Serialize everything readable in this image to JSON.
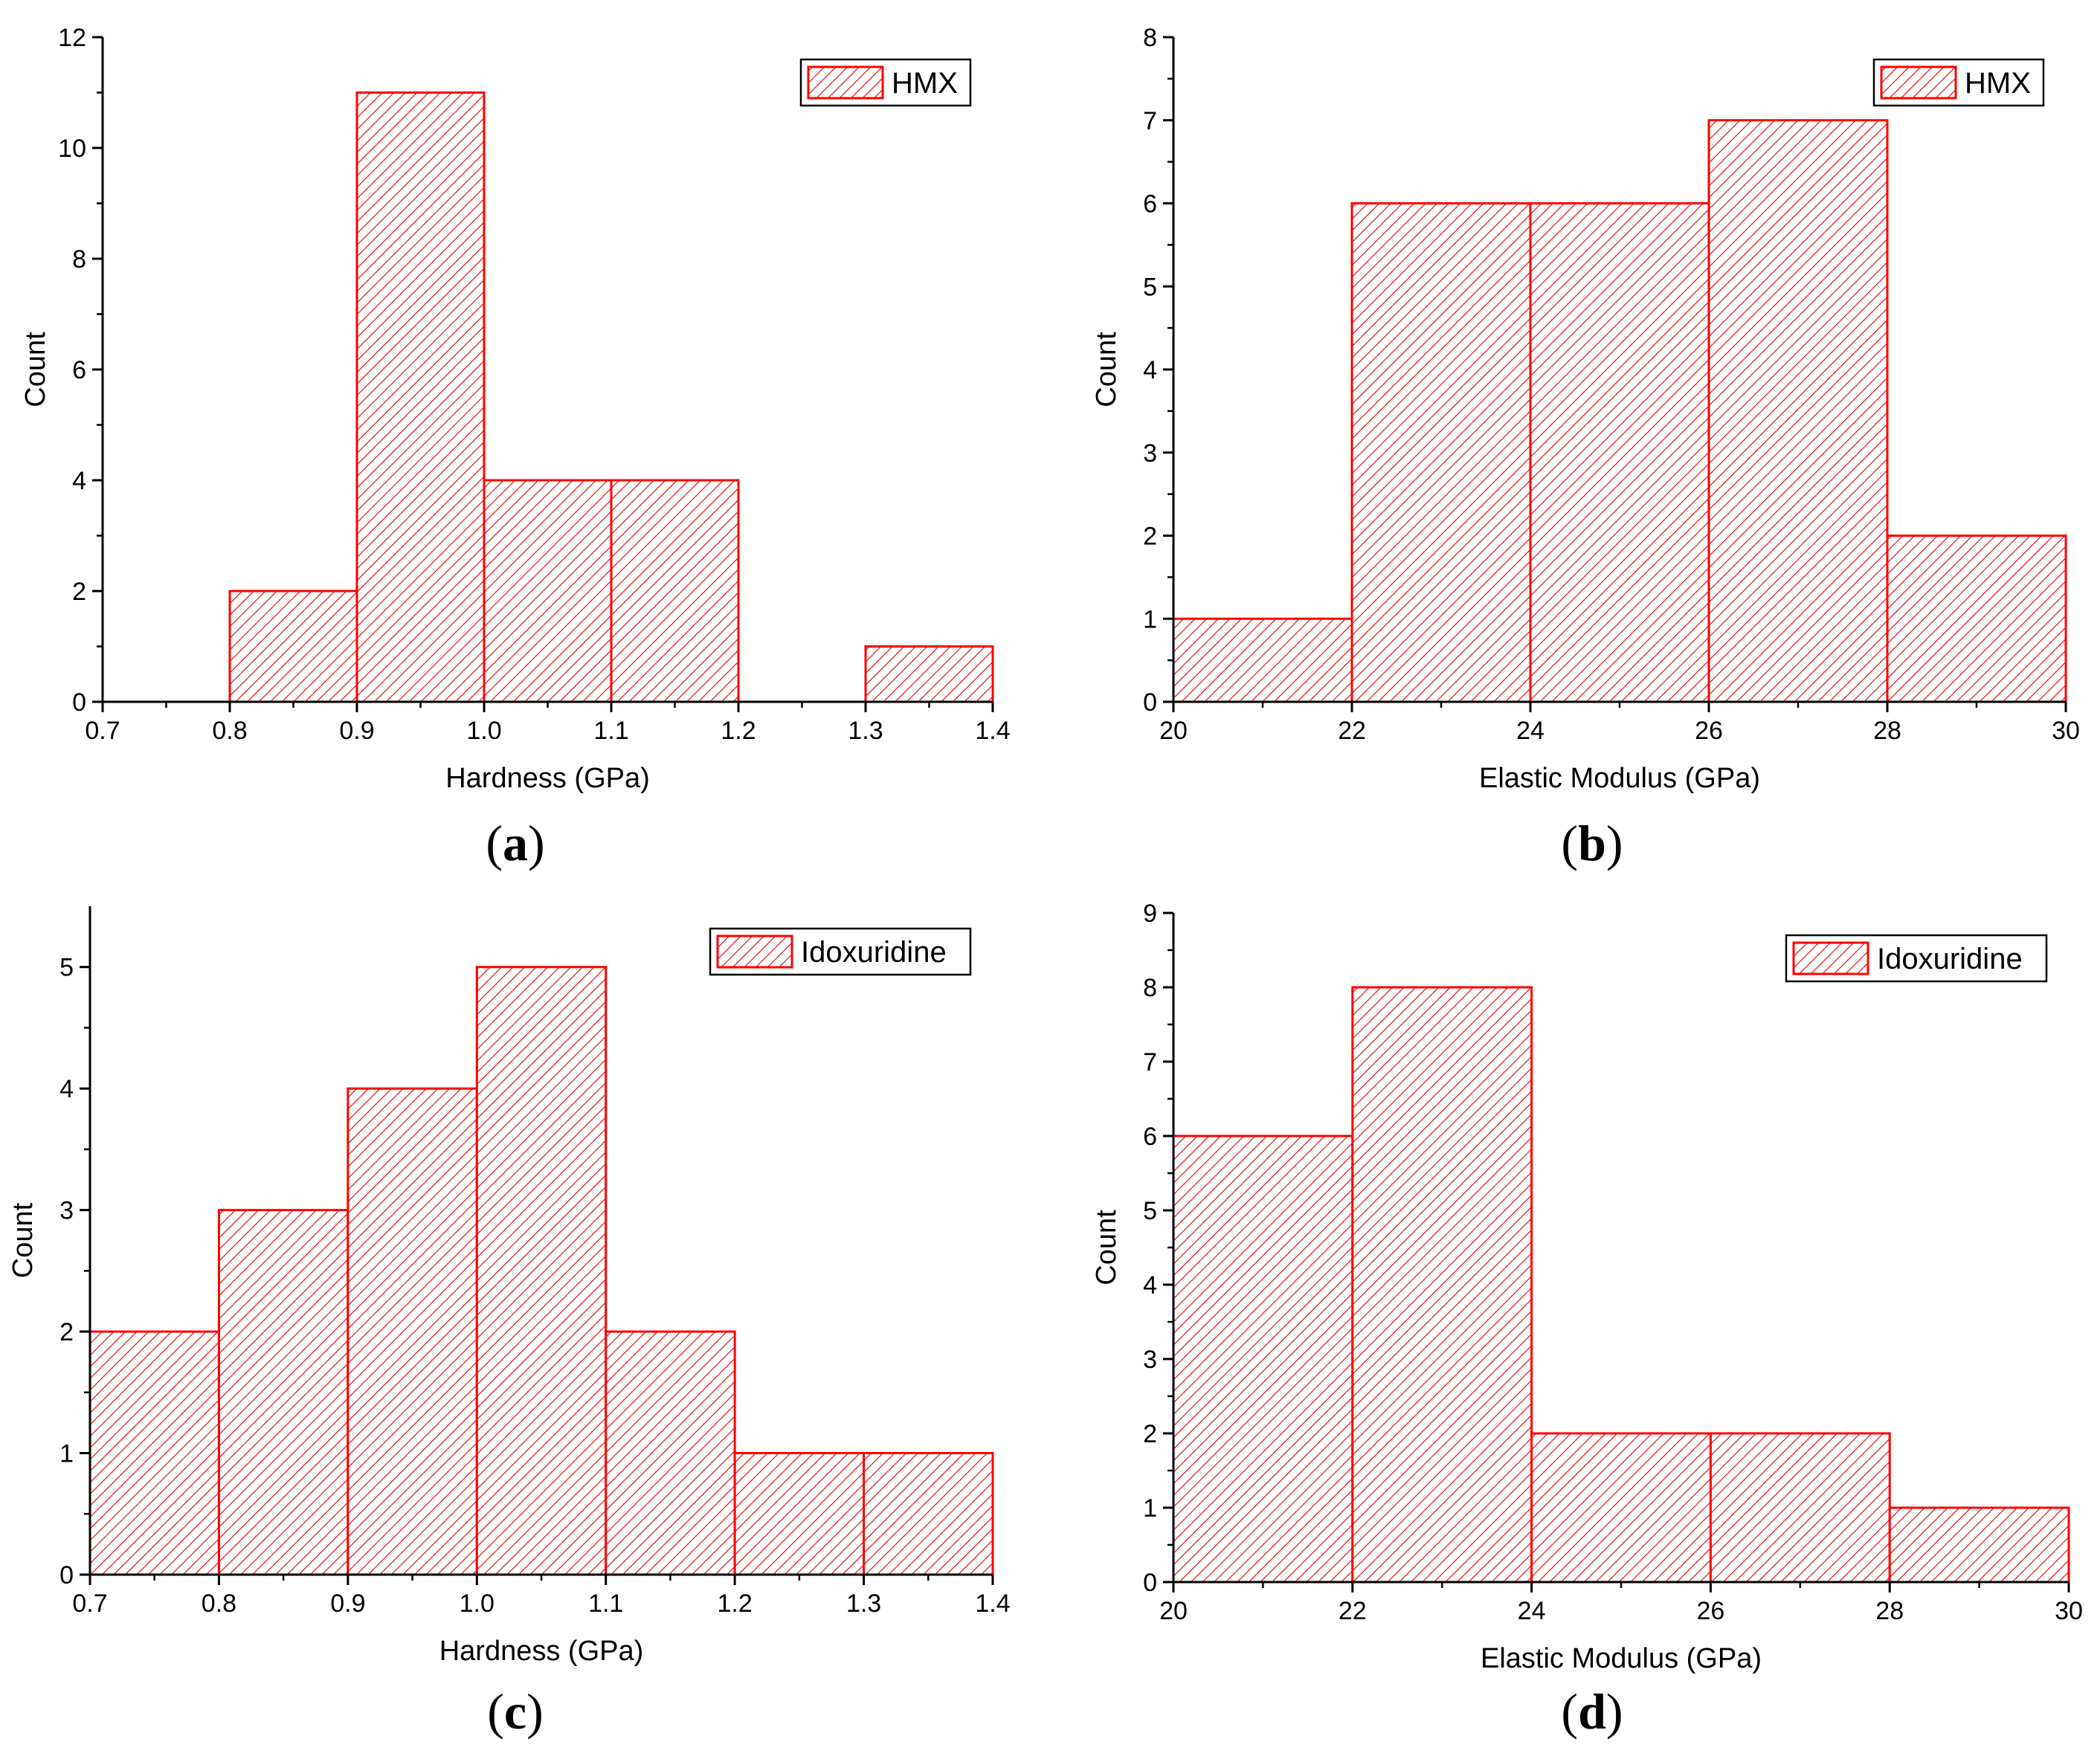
{
  "figure": {
    "bar_color": "#ff0000",
    "hatch_color": "#dd0000",
    "captions": {
      "a": "a",
      "b": "b",
      "c": "c",
      "d": "d"
    }
  },
  "chart_data": [
    {
      "id": "a",
      "type": "bar",
      "title": "",
      "xlabel": "Hardness (GPa)",
      "ylabel": "Count",
      "xlim": [
        0.7,
        1.4
      ],
      "ylim": [
        0,
        12
      ],
      "xticks": [
        "0.7",
        "0.8",
        "0.9",
        "1.0",
        "1.1",
        "1.2",
        "1.3",
        "1.4"
      ],
      "yticks": [
        "0",
        "2",
        "4",
        "6",
        "8",
        "10",
        "12"
      ],
      "legend": {
        "label": "HMX",
        "position": "top-right"
      },
      "bins": [
        {
          "x0": 0.8,
          "x1": 0.9,
          "count": 2
        },
        {
          "x0": 0.9,
          "x1": 1.0,
          "count": 11
        },
        {
          "x0": 1.0,
          "x1": 1.1,
          "count": 4
        },
        {
          "x0": 1.1,
          "x1": 1.2,
          "count": 4
        },
        {
          "x0": 1.3,
          "x1": 1.4,
          "count": 1
        }
      ]
    },
    {
      "id": "b",
      "type": "bar",
      "title": "",
      "xlabel": "Elastic Modulus (GPa)",
      "ylabel": "Count",
      "xlim": [
        20,
        30
      ],
      "ylim": [
        0,
        8
      ],
      "xticks": [
        "20",
        "22",
        "24",
        "26",
        "28",
        "30"
      ],
      "yticks": [
        "0",
        "1",
        "2",
        "3",
        "4",
        "5",
        "6",
        "7",
        "8"
      ],
      "legend": {
        "label": "HMX",
        "position": "top-right"
      },
      "bins": [
        {
          "x0": 20,
          "x1": 22,
          "count": 1
        },
        {
          "x0": 22,
          "x1": 24,
          "count": 6
        },
        {
          "x0": 24,
          "x1": 26,
          "count": 6
        },
        {
          "x0": 26,
          "x1": 28,
          "count": 7
        },
        {
          "x0": 28,
          "x1": 30,
          "count": 2
        }
      ]
    },
    {
      "id": "c",
      "type": "bar",
      "title": "",
      "xlabel": "Hardness (GPa)",
      "ylabel": "Count",
      "xlim": [
        0.7,
        1.4
      ],
      "ylim": [
        0,
        5.5
      ],
      "xticks": [
        "0.7",
        "0.8",
        "0.9",
        "1.0",
        "1.1",
        "1.2",
        "1.3",
        "1.4"
      ],
      "yticks": [
        "0",
        "1",
        "2",
        "3",
        "4",
        "5"
      ],
      "legend": {
        "label": "Idoxuridine",
        "position": "top-right"
      },
      "bins": [
        {
          "x0": 0.7,
          "x1": 0.8,
          "count": 2
        },
        {
          "x0": 0.8,
          "x1": 0.9,
          "count": 3
        },
        {
          "x0": 0.9,
          "x1": 1.0,
          "count": 4
        },
        {
          "x0": 1.0,
          "x1": 1.1,
          "count": 5
        },
        {
          "x0": 1.1,
          "x1": 1.2,
          "count": 2
        },
        {
          "x0": 1.2,
          "x1": 1.3,
          "count": 1
        },
        {
          "x0": 1.3,
          "x1": 1.4,
          "count": 1
        }
      ]
    },
    {
      "id": "d",
      "type": "bar",
      "title": "",
      "xlabel": "Elastic Modulus (GPa)",
      "ylabel": "Count",
      "xlim": [
        20,
        30
      ],
      "ylim": [
        0,
        9
      ],
      "xticks": [
        "20",
        "22",
        "24",
        "26",
        "28",
        "30"
      ],
      "yticks": [
        "0",
        "1",
        "2",
        "3",
        "4",
        "5",
        "6",
        "7",
        "8",
        "9"
      ],
      "legend": {
        "label": "Idoxuridine",
        "position": "top-right"
      },
      "bins": [
        {
          "x0": 20,
          "x1": 22,
          "count": 6
        },
        {
          "x0": 22,
          "x1": 24,
          "count": 8
        },
        {
          "x0": 24,
          "x1": 26,
          "count": 2
        },
        {
          "x0": 26,
          "x1": 28,
          "count": 2
        },
        {
          "x0": 28,
          "x1": 30,
          "count": 1
        }
      ]
    }
  ]
}
